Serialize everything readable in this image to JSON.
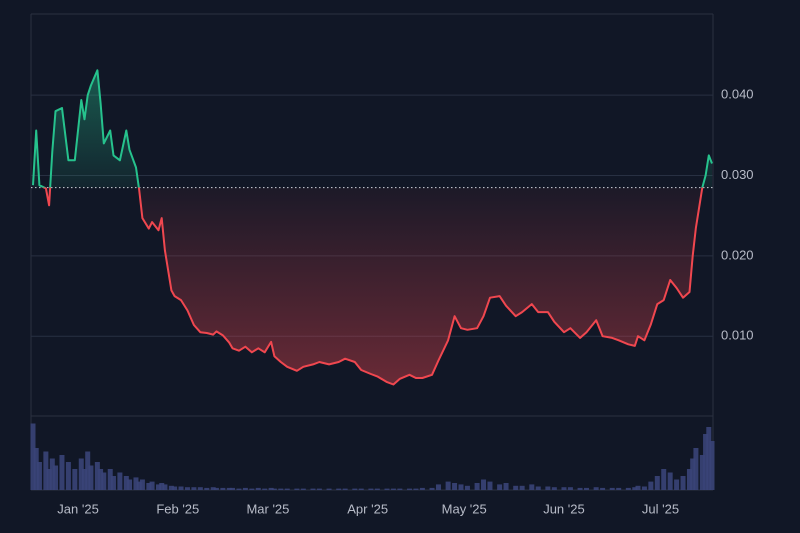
{
  "chart_data": {
    "type": "baseline",
    "x": [
      -14,
      -13,
      -12,
      -10,
      -9,
      -8,
      -7,
      -5,
      -3,
      -1,
      1,
      2,
      3,
      4,
      6,
      7,
      8,
      10,
      11,
      13,
      15,
      16,
      18,
      19,
      20,
      22,
      23,
      25,
      26,
      27,
      29,
      30,
      32,
      34,
      36,
      38,
      40,
      42,
      43,
      45,
      47,
      48,
      50,
      52,
      54,
      56,
      58,
      60,
      61,
      63,
      65,
      68,
      70,
      73,
      75,
      78,
      81,
      83,
      86,
      88,
      91,
      93,
      96,
      98,
      100,
      103,
      105,
      107,
      110,
      112,
      115,
      117,
      119,
      121,
      124,
      126,
      128,
      131,
      133,
      136,
      138,
      141,
      143,
      146,
      148,
      151,
      153,
      156,
      158,
      161,
      163,
      166,
      168,
      171,
      173,
      174,
      176,
      178,
      180,
      182,
      184,
      186,
      188,
      190,
      191,
      192,
      194,
      195,
      196,
      197
    ],
    "series": [
      {
        "color_above": "#26c28d",
        "color_below": "#f0474f",
        "values": [
          0.0288,
          0.0356,
          0.0288,
          0.0284,
          0.0263,
          0.033,
          0.038,
          0.0384,
          0.0319,
          0.0319,
          0.0394,
          0.037,
          0.04,
          0.0412,
          0.0431,
          0.039,
          0.034,
          0.0356,
          0.0325,
          0.0319,
          0.0356,
          0.0332,
          0.031,
          0.0282,
          0.0247,
          0.0234,
          0.0242,
          0.0232,
          0.0247,
          0.0207,
          0.0157,
          0.015,
          0.0145,
          0.0132,
          0.0114,
          0.0105,
          0.0104,
          0.0102,
          0.0106,
          0.0101,
          0.0092,
          0.0085,
          0.0082,
          0.0087,
          0.008,
          0.0085,
          0.008,
          0.0093,
          0.0075,
          0.0068,
          0.0062,
          0.0057,
          0.0062,
          0.0065,
          0.0068,
          0.0065,
          0.0068,
          0.0072,
          0.0068,
          0.0058,
          0.0053,
          0.005,
          0.0043,
          0.004,
          0.0047,
          0.0052,
          0.0048,
          0.0048,
          0.0052,
          0.007,
          0.0095,
          0.0125,
          0.011,
          0.0108,
          0.011,
          0.0125,
          0.0148,
          0.015,
          0.0138,
          0.0125,
          0.013,
          0.014,
          0.013,
          0.013,
          0.0118,
          0.0105,
          0.011,
          0.0098,
          0.0105,
          0.012,
          0.01,
          0.0098,
          0.0095,
          0.009,
          0.0088,
          0.01,
          0.0095,
          0.0115,
          0.014,
          0.0145,
          0.017,
          0.016,
          0.0148,
          0.0155,
          0.02,
          0.0235,
          0.0285,
          0.03,
          0.0325,
          0.0315
        ]
      }
    ],
    "baseline": 0.0285,
    "xlim": [
      -14,
      197
    ],
    "xticks": [
      {
        "value": 0,
        "label": "Jan '25"
      },
      {
        "value": 31,
        "label": "Feb '25"
      },
      {
        "value": 59,
        "label": "Mar '25"
      },
      {
        "value": 90,
        "label": "Apr '25"
      },
      {
        "value": 120,
        "label": "May '25"
      },
      {
        "value": 151,
        "label": "Jun '25"
      },
      {
        "value": 181,
        "label": "Jul '25"
      }
    ],
    "ylim": [
      0.0002,
      0.0501
    ],
    "yticks": [
      {
        "value": 0.01,
        "label": "0.010"
      },
      {
        "value": 0.02,
        "label": "0.020"
      },
      {
        "value": 0.03,
        "label": "0.030"
      },
      {
        "value": 0.04,
        "label": "0.040"
      }
    ],
    "grid": true,
    "volume": {
      "color": "#3a4478",
      "ylim": [
        0,
        100
      ],
      "values": [
        95,
        60,
        40,
        55,
        30,
        45,
        35,
        50,
        40,
        30,
        45,
        30,
        55,
        35,
        40,
        30,
        25,
        30,
        20,
        25,
        20,
        15,
        18,
        12,
        15,
        10,
        12,
        8,
        10,
        8,
        6,
        5,
        5,
        4,
        4,
        4,
        3,
        4,
        3,
        3,
        3,
        3,
        2,
        3,
        2,
        3,
        2,
        3,
        2,
        2,
        2,
        2,
        2,
        2,
        2,
        2,
        2,
        2,
        2,
        2,
        2,
        2,
        2,
        2,
        2,
        2,
        2,
        3,
        3,
        8,
        12,
        10,
        8,
        6,
        10,
        15,
        12,
        8,
        10,
        6,
        6,
        8,
        5,
        5,
        4,
        4,
        4,
        3,
        3,
        4,
        3,
        3,
        3,
        3,
        4,
        6,
        5,
        12,
        20,
        30,
        25,
        15,
        20,
        30,
        45,
        60,
        50,
        80,
        90,
        70
      ]
    }
  }
}
